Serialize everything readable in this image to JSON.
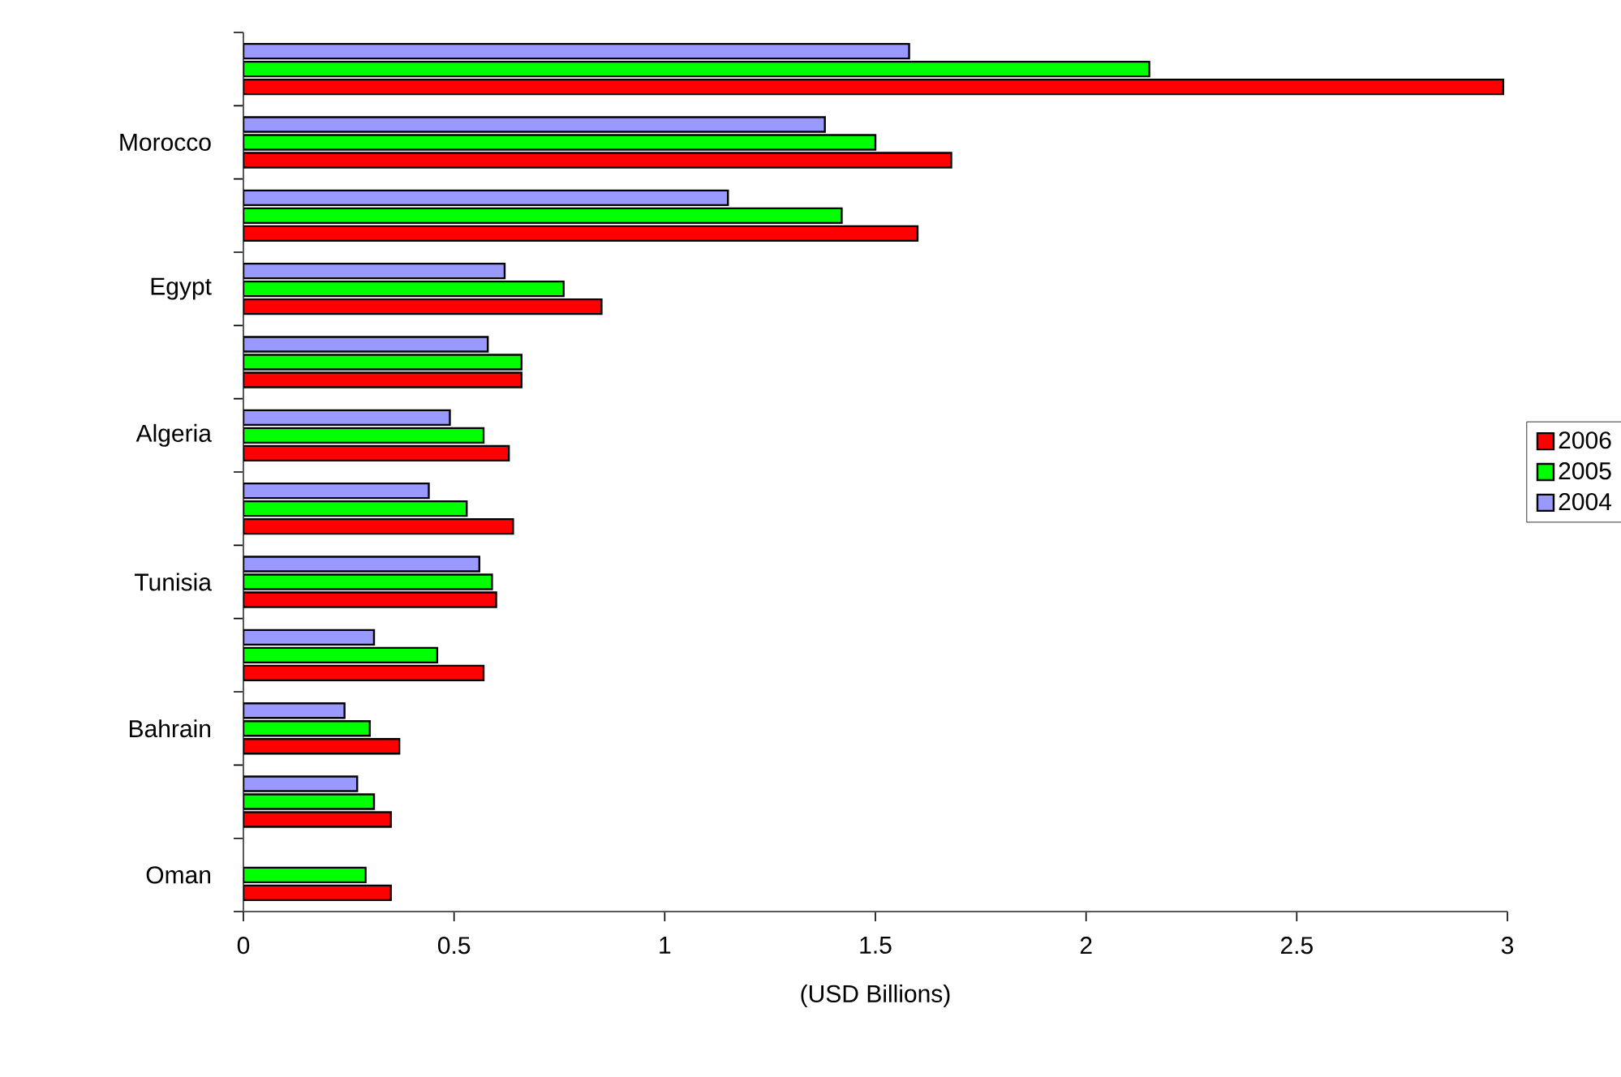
{
  "chart_data": {
    "type": "bar",
    "orientation": "horizontal",
    "xlabel": "(USD Billions)",
    "categories": [
      null,
      "Morocco",
      null,
      "Egypt",
      null,
      "Algeria",
      null,
      "Tunisia",
      null,
      "Bahrain",
      null,
      "Oman"
    ],
    "series": [
      {
        "name": "2006",
        "color": "#ff0000",
        "values": [
          2.99,
          1.68,
          1.6,
          0.85,
          0.66,
          0.63,
          0.64,
          0.6,
          0.57,
          0.37,
          0.35,
          0.35
        ]
      },
      {
        "name": "2005",
        "color": "#00ff00",
        "values": [
          2.15,
          1.5,
          1.42,
          0.76,
          0.66,
          0.57,
          0.53,
          0.59,
          0.46,
          0.3,
          0.31,
          0.29
        ]
      },
      {
        "name": "2004",
        "color": "#9999ff",
        "values": [
          1.58,
          1.38,
          1.15,
          0.62,
          0.58,
          0.49,
          0.44,
          0.56,
          0.31,
          0.24,
          0.27,
          null
        ]
      }
    ],
    "xlim": [
      0,
      3
    ],
    "xticks": [
      0,
      0.5,
      1,
      1.5,
      2,
      2.5,
      3
    ],
    "grid": false,
    "legend": "right"
  }
}
